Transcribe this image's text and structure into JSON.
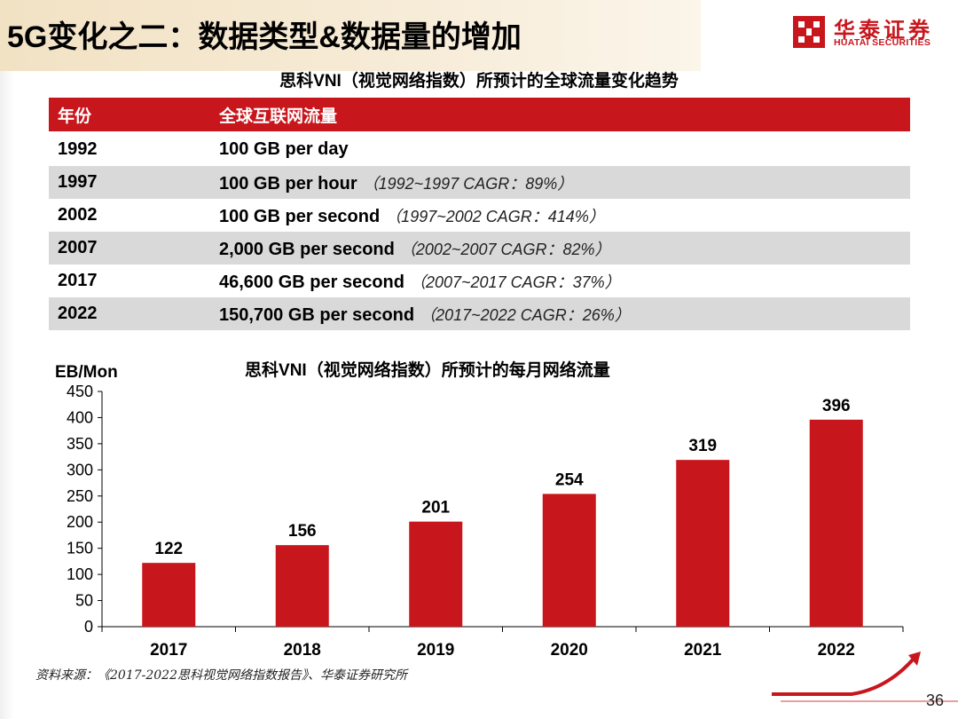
{
  "header": {
    "title": "5G变化之二：数据类型&数据量的增加",
    "logo_cn": "华泰证券",
    "logo_en": "HUATAI SECURITIES"
  },
  "table": {
    "title_pre": "思科",
    "title_bold": "VNI",
    "title_post": "（视觉网络指数）所预计的全球流量变化趋势",
    "headers": [
      "年份",
      "全球互联网流量"
    ],
    "rows": [
      {
        "year": "1992",
        "traffic": "100 GB per day",
        "note": ""
      },
      {
        "year": "1997",
        "traffic": "100 GB per hour",
        "note": "（1992~1997 CAGR：89%）"
      },
      {
        "year": "2002",
        "traffic": "100 GB per second",
        "note": "（1997~2002 CAGR：414%）"
      },
      {
        "year": "2007",
        "traffic": "2,000 GB per second",
        "note": "（2002~2007 CAGR：82%）"
      },
      {
        "year": "2017",
        "traffic": "46,600 GB per second",
        "note": "（2007~2017 CAGR：37%）"
      },
      {
        "year": "2022",
        "traffic": "150,700 GB per second",
        "note": "（2017~2022 CAGR：26%）"
      }
    ]
  },
  "chart_data": {
    "type": "bar",
    "title_pre": "思科",
    "title_bold": "VNI",
    "title_post": "（视觉网络指数）所预计的每月网络流量",
    "ylabel": "EB/Mon",
    "xlabel": "",
    "categories": [
      "2017",
      "2018",
      "2019",
      "2020",
      "2021",
      "2022"
    ],
    "values": [
      122,
      156,
      201,
      254,
      319,
      396
    ],
    "yticks": [
      0,
      50,
      100,
      150,
      200,
      250,
      300,
      350,
      400,
      450
    ],
    "ylim": [
      0,
      450
    ],
    "grid": false,
    "bar_color": "#c8161d",
    "data_labels": true
  },
  "footer": {
    "source": "资料来源：《2017-2022思科视觉网络指数报告》、华泰证券研究所",
    "page": "36"
  },
  "colors": {
    "accent": "#c8161d",
    "row_alt": "#d9d9d9"
  }
}
